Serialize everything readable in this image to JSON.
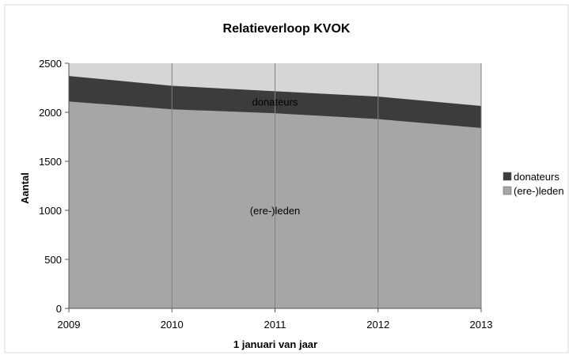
{
  "chart_data": {
    "type": "area",
    "stacked": true,
    "title": "Relatieverloop KVOK",
    "xlabel": "1 januari van jaar",
    "ylabel": "Aantal",
    "x": [
      2009,
      2010,
      2011,
      2012,
      2013
    ],
    "ylim": [
      0,
      2500
    ],
    "yticks": [
      0,
      500,
      1000,
      1500,
      2000,
      2500
    ],
    "grid": "vertical",
    "legend_position": "right",
    "series": [
      {
        "name": "(ere-)leden",
        "values": [
          2110,
          2030,
          1990,
          1930,
          1840
        ],
        "color": "#a6a6a6"
      },
      {
        "name": "donateurs",
        "values": [
          260,
          240,
          225,
          230,
          225
        ],
        "color": "#3c3c3c"
      }
    ],
    "upper_fill_color": "#d6d6d6",
    "annotations": [
      {
        "text": "donateurs",
        "x": 2011,
        "y": 2110
      },
      {
        "text": "(ere-)leden",
        "x": 2011,
        "y": 1000
      }
    ]
  }
}
